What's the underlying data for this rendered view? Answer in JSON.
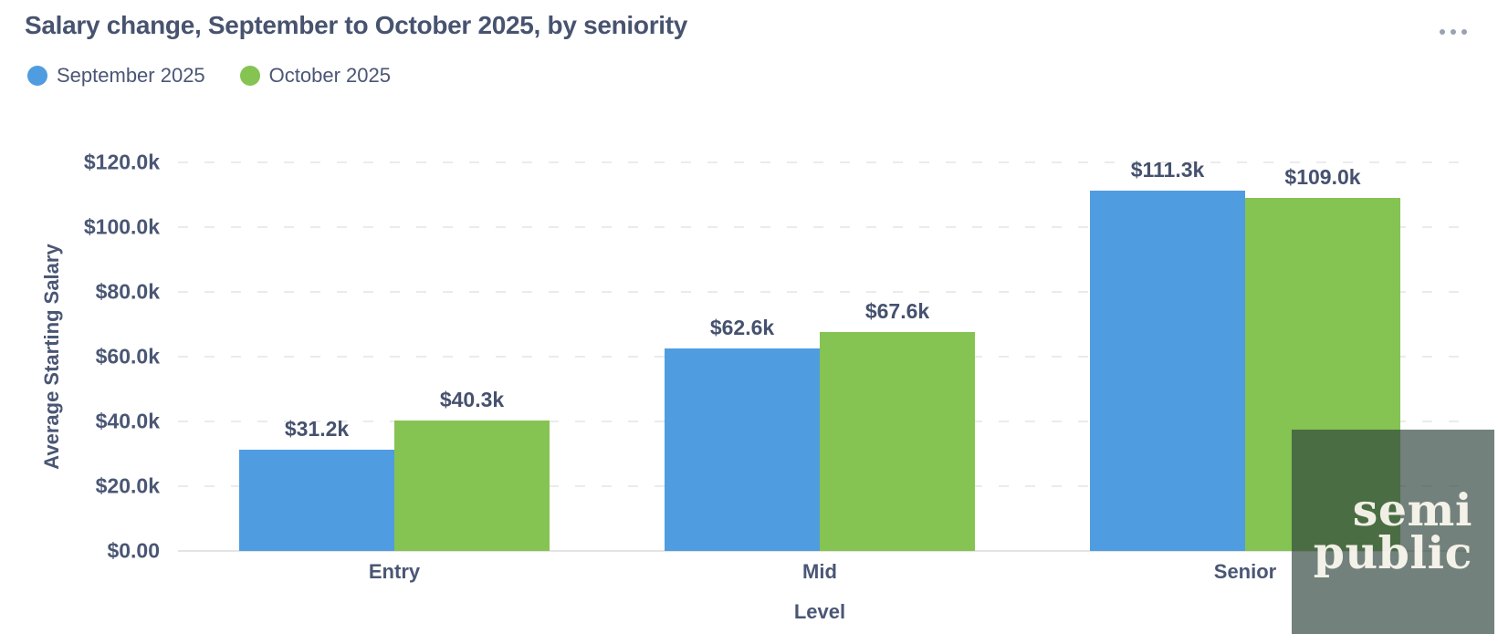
{
  "header": {
    "title": "Salary change, September to October 2025, by seniority",
    "icons": {
      "more_options": "ellipsis-horizontal"
    }
  },
  "legend": {
    "items": [
      {
        "label": "September 2025",
        "color": "#4f9de0"
      },
      {
        "label": "October 2025",
        "color": "#85c352"
      }
    ]
  },
  "chart_data": {
    "type": "bar",
    "title": "Salary change, September to October 2025, by seniority",
    "categories": [
      "Entry",
      "Mid",
      "Senior"
    ],
    "series": [
      {
        "name": "September 2025",
        "color": "#4f9de0",
        "values": [
          31200,
          62600,
          111300
        ],
        "labels": [
          "$31.2k",
          "$62.6k",
          "$111.3k"
        ]
      },
      {
        "name": "October 2025",
        "color": "#85c352",
        "values": [
          40300,
          67600,
          109000
        ],
        "labels": [
          "$40.3k",
          "$67.6k",
          "$109.0k"
        ]
      }
    ],
    "xlabel": "Level",
    "ylabel": "Average Starting Salary",
    "ylim": [
      0,
      120000
    ],
    "yticks": [
      {
        "value": 0,
        "label": "$0.00"
      },
      {
        "value": 20000,
        "label": "$20.0k"
      },
      {
        "value": 40000,
        "label": "$40.0k"
      },
      {
        "value": 60000,
        "label": "$60.0k"
      },
      {
        "value": 80000,
        "label": "$80.0k"
      },
      {
        "value": 100000,
        "label": "$100.0k"
      },
      {
        "value": 120000,
        "label": "$120.0k"
      }
    ],
    "grid": "horizontal-dashed",
    "legend_position": "top-left"
  },
  "watermark": {
    "line1": "semi",
    "line2": "public"
  },
  "colors": {
    "title_text": "#47536f",
    "axis_text": "#4a5674",
    "grid": "#ebebeb",
    "axis_line": "#e4e4e4",
    "menu_dots": "#99a2ae",
    "watermark_bg": "rgba(45,67,60,0.67)",
    "watermark_text": "#faf7ee"
  }
}
